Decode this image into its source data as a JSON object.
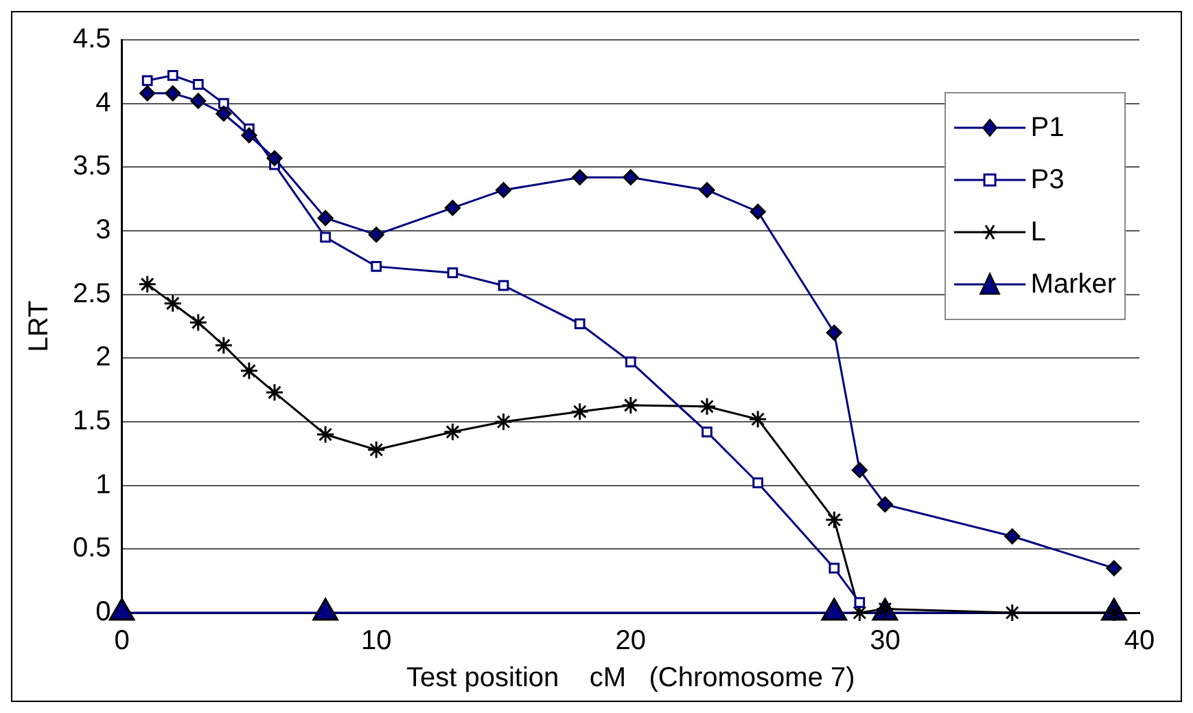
{
  "chart_data": {
    "type": "line",
    "xlabel": "Test position    cM   (Chromosome 7)",
    "ylabel": "LRT",
    "xlim": [
      0,
      40
    ],
    "xticks": [
      0,
      10,
      20,
      30,
      40
    ],
    "ylim": [
      0,
      4.5
    ],
    "yticks": [
      0,
      0.5,
      1,
      1.5,
      2,
      2.5,
      3,
      3.5,
      4,
      4.5
    ],
    "grid": "y",
    "legend": "top right",
    "series": [
      {
        "name": "P1",
        "color": "#000080",
        "marker": "diamond",
        "x": [
          1,
          2,
          3,
          4,
          5,
          6,
          8,
          10,
          13,
          15,
          18,
          20,
          23,
          25,
          28,
          29,
          30,
          35,
          39
        ],
        "values": [
          4.08,
          4.08,
          4.02,
          3.92,
          3.75,
          3.57,
          3.1,
          2.97,
          3.18,
          3.32,
          3.42,
          3.42,
          3.32,
          3.15,
          2.2,
          1.12,
          0.85,
          0.6,
          0.35
        ]
      },
      {
        "name": "P3",
        "color": "#000080",
        "marker": "square",
        "x": [
          1,
          2,
          3,
          4,
          5,
          6,
          8,
          10,
          13,
          15,
          18,
          20,
          23,
          25,
          28,
          29
        ],
        "values": [
          4.18,
          4.22,
          4.15,
          4.0,
          3.8,
          3.52,
          2.95,
          2.72,
          2.67,
          2.57,
          2.27,
          1.97,
          1.42,
          1.02,
          0.35,
          0.08
        ]
      },
      {
        "name": "L",
        "color": "#000000",
        "marker": "cross",
        "x": [
          1,
          2,
          3,
          4,
          5,
          6,
          8,
          10,
          13,
          15,
          18,
          20,
          23,
          25,
          28,
          29,
          30,
          35,
          39
        ],
        "values": [
          2.58,
          2.43,
          2.28,
          2.1,
          1.9,
          1.73,
          1.4,
          1.28,
          1.42,
          1.5,
          1.58,
          1.63,
          1.62,
          1.52,
          0.73,
          0.0,
          0.03,
          0.0,
          0.0
        ]
      },
      {
        "name": "Marker",
        "color": "#000080",
        "marker": "triangle",
        "x": [
          0,
          8,
          28,
          30,
          39
        ],
        "values": [
          0,
          0,
          0,
          0,
          0
        ]
      }
    ]
  }
}
